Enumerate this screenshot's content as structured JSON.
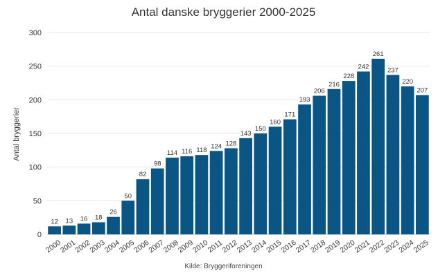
{
  "chart_data": {
    "type": "bar",
    "title": "Antal danske bryggerier 2000-2025",
    "ylabel": "Antal bryggerier",
    "xlabel": "",
    "source": "Kilde: Bryggeriforeningen",
    "categories": [
      "2000",
      "2001",
      "2002",
      "2003",
      "2004",
      "2005",
      "2006",
      "2007",
      "2008",
      "2009",
      "2010",
      "2011",
      "2012",
      "2013",
      "2014",
      "2015",
      "2016",
      "2017",
      "2018",
      "2019",
      "2020",
      "2021",
      "2022",
      "2023",
      "2024",
      "2025"
    ],
    "values": [
      12,
      13,
      16,
      18,
      26,
      50,
      82,
      98,
      114,
      116,
      118,
      124,
      128,
      143,
      150,
      160,
      171,
      193,
      206,
      216,
      228,
      242,
      261,
      237,
      220,
      207
    ],
    "yticks": [
      0,
      50,
      100,
      150,
      200,
      250,
      300
    ],
    "ylim": [
      0,
      300
    ],
    "grid": true,
    "legend": "none",
    "bar_color": "#0b5585"
  }
}
